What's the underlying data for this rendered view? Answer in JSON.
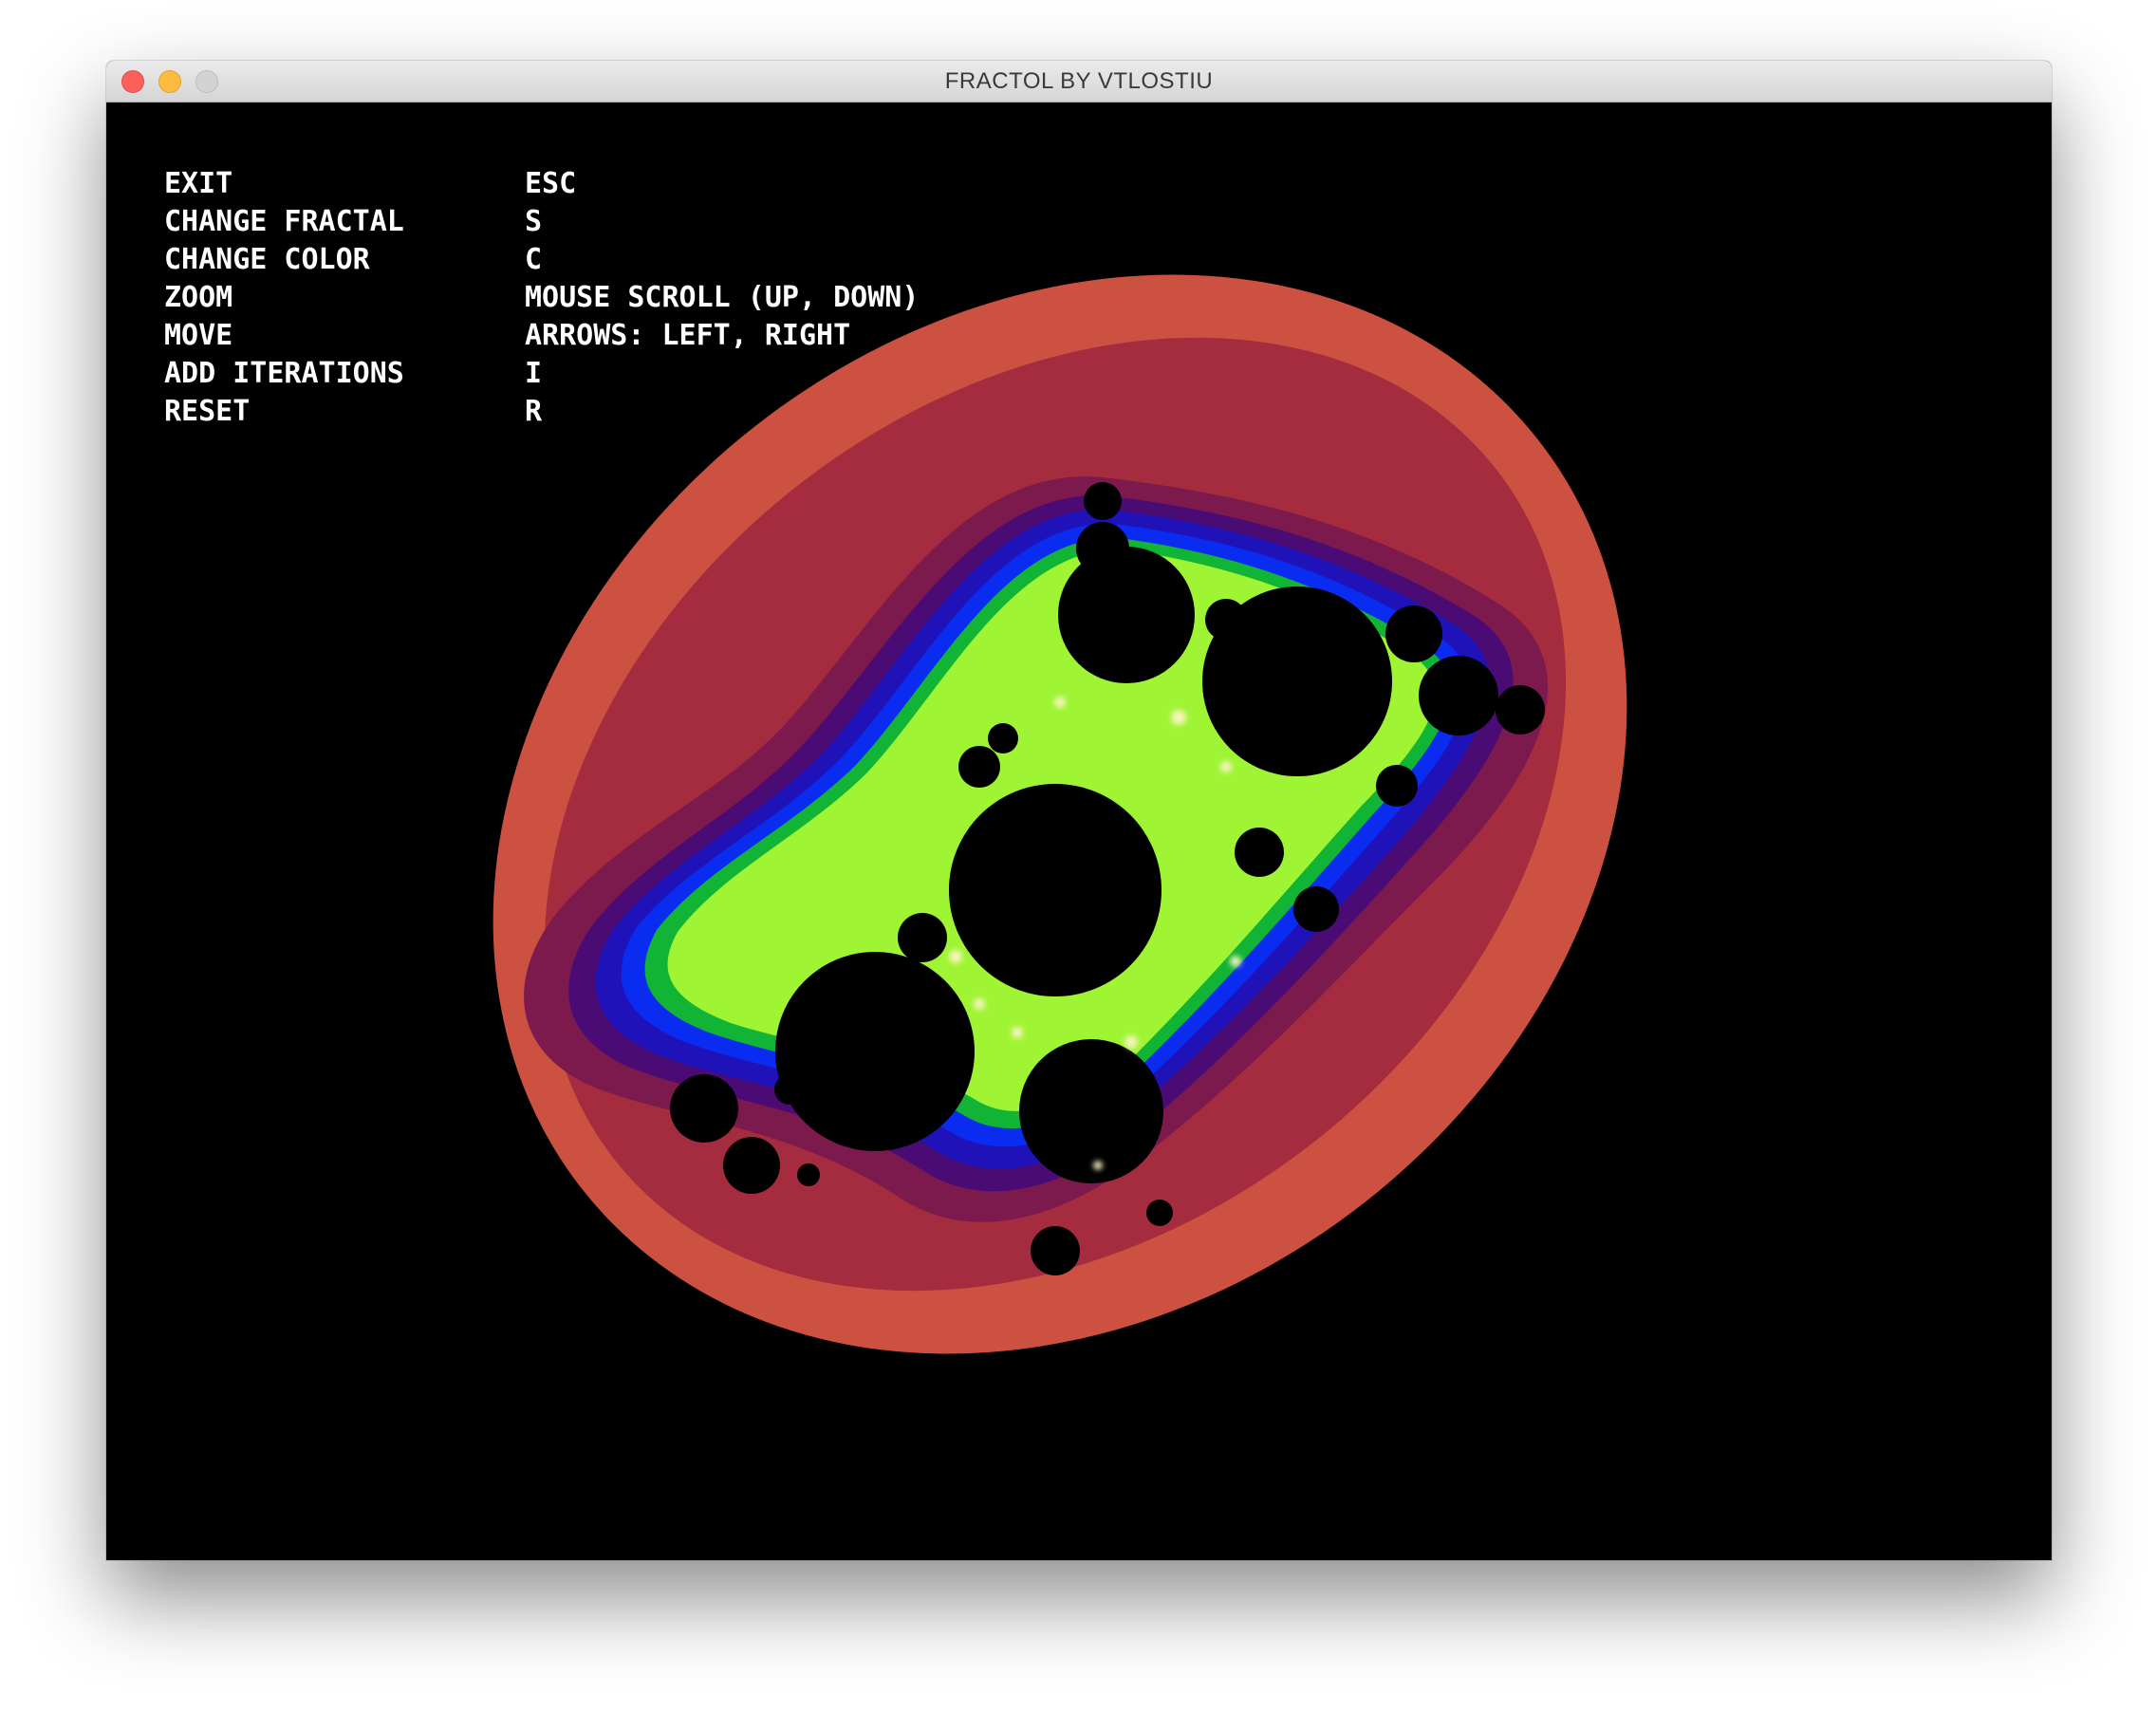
{
  "window": {
    "title": "FRACTOL BY VTLOSTIU",
    "controls": [
      "close",
      "minimize",
      "zoom"
    ]
  },
  "help": {
    "rows": [
      {
        "label": "EXIT",
        "key": "ESC"
      },
      {
        "label": "CHANGE FRACTAL",
        "key": "S"
      },
      {
        "label": "CHANGE COLOR",
        "key": "C"
      },
      {
        "label": "ZOOM",
        "key": "MOUSE SCROLL (UP, DOWN)"
      },
      {
        "label": "MOVE",
        "key": "ARROWS: LEFT, RIGHT"
      },
      {
        "label": "ADD ITERATIONS",
        "key": "I"
      },
      {
        "label": "RESET",
        "key": "R"
      }
    ]
  },
  "fractal": {
    "type": "julia",
    "colors": {
      "outer": "#cc5140",
      "band2": "#a52c3e",
      "band3": "#7c1a4e",
      "band4": "#4a0c74",
      "band5": "#1f12b8",
      "band6": "#0a2cf0",
      "band7": "#12b436",
      "band8": "#b8ff34",
      "core": "#000000",
      "highlight": "#fff4c8"
    }
  }
}
